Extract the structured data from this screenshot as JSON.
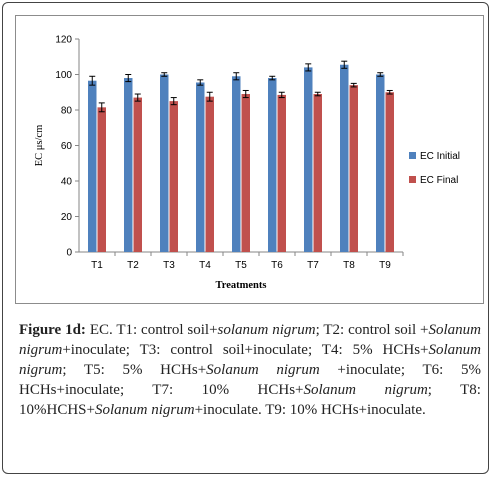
{
  "chart_data": {
    "type": "bar",
    "title": "",
    "xlabel": "Treatments",
    "ylabel": "EC μs/cm",
    "ylim": [
      0,
      120
    ],
    "yticks": [
      0,
      20,
      40,
      60,
      80,
      100,
      120
    ],
    "grid": false,
    "legend_position": "right",
    "categories": [
      "T1",
      "T2",
      "T3",
      "T4",
      "T5",
      "T6",
      "T7",
      "T8",
      "T9"
    ],
    "series": [
      {
        "name": "EC  Initial",
        "color": "#4f81bd",
        "values": [
          96.5,
          98,
          100,
          95.5,
          99,
          98,
          104,
          105.5,
          100
        ],
        "errors": [
          2.5,
          2,
          1,
          1.5,
          2,
          1,
          2,
          2,
          1
        ]
      },
      {
        "name": "EC  Final",
        "color": "#c0504d",
        "values": [
          81.5,
          87,
          85,
          87.5,
          89,
          88.5,
          89,
          94,
          90
        ],
        "errors": [
          2.5,
          2,
          2,
          2.5,
          2,
          1.5,
          1,
          1,
          1
        ]
      }
    ]
  },
  "caption": {
    "label": "Figure 1d:",
    "segments": [
      {
        "text": " EC. T1: control soil+",
        "italic": false
      },
      {
        "text": "solanum nigrum",
        "italic": true
      },
      {
        "text": "; T2: control soil +",
        "italic": false
      },
      {
        "text": "Solanum nigrum",
        "italic": true
      },
      {
        "text": "+inoculate; T3: control soil+inoculate; T4: 5% HCHs+",
        "italic": false
      },
      {
        "text": "Solanum nigrum",
        "italic": true
      },
      {
        "text": "; T5: 5% HCHs+",
        "italic": false
      },
      {
        "text": "Solanum nigrum",
        "italic": true
      },
      {
        "text": " +inoculate; T6: 5% HCHs+inoculate; T7: 10% HCHs+",
        "italic": false
      },
      {
        "text": "Solanum nigrum",
        "italic": true
      },
      {
        "text": "; T8: 10%HCHS+",
        "italic": false
      },
      {
        "text": "Solanum nigrum",
        "italic": true
      },
      {
        "text": "+inoculate. T9: 10% HCHs+inoculate.",
        "italic": false
      }
    ]
  }
}
